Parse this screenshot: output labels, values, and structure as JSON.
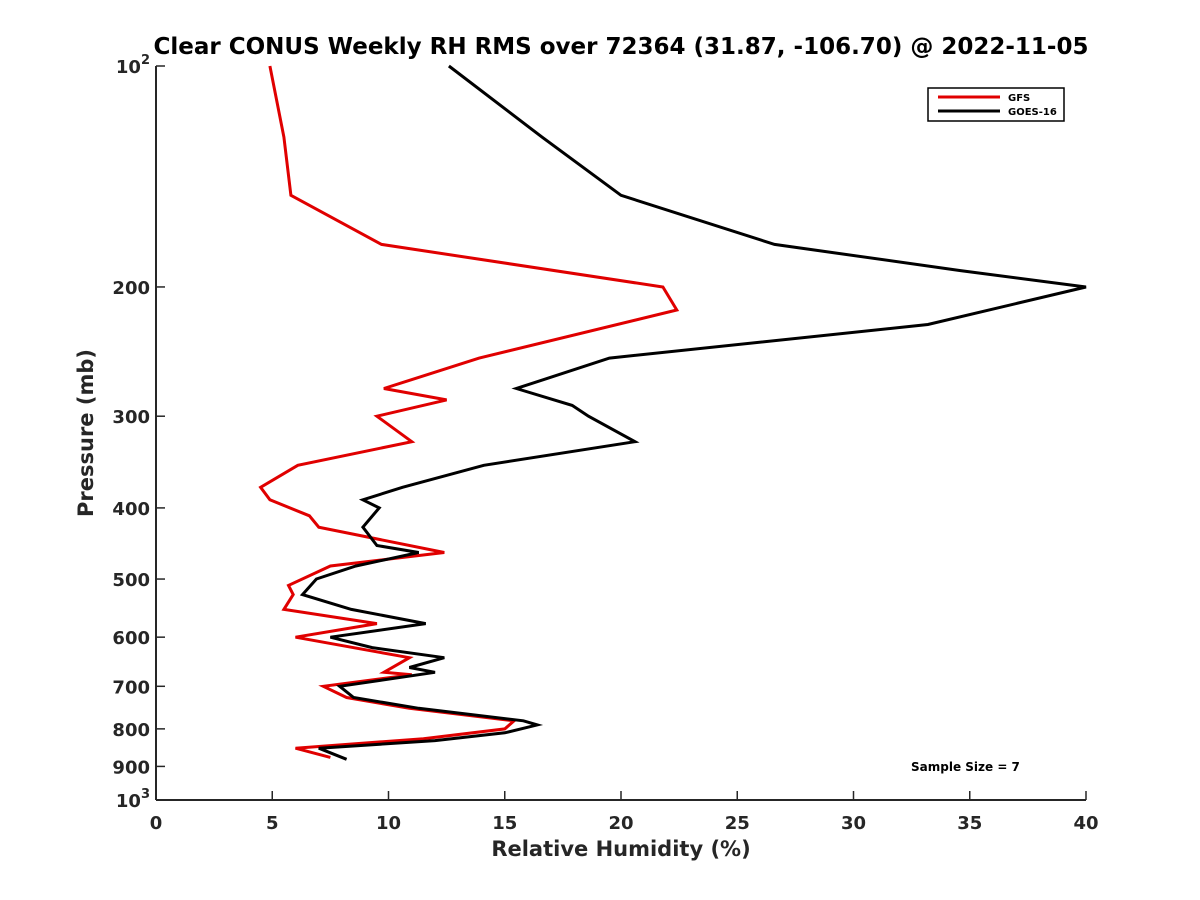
{
  "chart_data": {
    "type": "line",
    "title": "Clear CONUS Weekly RH RMS over 72364 (31.87, -106.70) @ 2022-11-05",
    "xlabel": "Relative Humidity (%)",
    "ylabel": "Pressure (mb)",
    "xlim": [
      0,
      40
    ],
    "ylim": [
      100,
      1000
    ],
    "y_scale": "log",
    "y_reversed": true,
    "x_ticks": [
      "0",
      "5",
      "10",
      "15",
      "20",
      "25",
      "30",
      "35",
      "40"
    ],
    "y_ticks": [
      {
        "value": 100,
        "base": "10",
        "exp": "2"
      },
      {
        "value": 200,
        "label": "200"
      },
      {
        "value": 300,
        "label": "300"
      },
      {
        "value": 400,
        "label": "400"
      },
      {
        "value": 500,
        "label": "500"
      },
      {
        "value": 600,
        "label": "600"
      },
      {
        "value": 700,
        "label": "700"
      },
      {
        "value": 800,
        "label": "800"
      },
      {
        "value": 900,
        "label": "900"
      },
      {
        "value": 1000,
        "base": "10",
        "exp": "3"
      }
    ],
    "legend_position": "top-right",
    "annotation": "Sample Size = 7",
    "series": [
      {
        "name": "GFS",
        "color": "#e00000",
        "points": [
          [
            4.9,
            100
          ],
          [
            5.5,
            125
          ],
          [
            5.8,
            150
          ],
          [
            9.7,
            175
          ],
          [
            21.8,
            200
          ],
          [
            22.4,
            215
          ],
          [
            13.9,
            250
          ],
          [
            9.8,
            275
          ],
          [
            12.5,
            285
          ],
          [
            9.5,
            300
          ],
          [
            11.0,
            325
          ],
          [
            6.1,
            350
          ],
          [
            4.5,
            375
          ],
          [
            4.9,
            390
          ],
          [
            6.6,
            410
          ],
          [
            7.0,
            425
          ],
          [
            12.4,
            460
          ],
          [
            7.5,
            480
          ],
          [
            5.7,
            510
          ],
          [
            5.9,
            525
          ],
          [
            5.5,
            550
          ],
          [
            9.5,
            575
          ],
          [
            6.0,
            600
          ],
          [
            10.9,
            640
          ],
          [
            9.8,
            670
          ],
          [
            11.0,
            675
          ],
          [
            7.2,
            700
          ],
          [
            8.2,
            725
          ],
          [
            10.9,
            750
          ],
          [
            15.4,
            780
          ],
          [
            15.0,
            800
          ],
          [
            11.5,
            825
          ],
          [
            6.0,
            850
          ],
          [
            7.5,
            875
          ]
        ]
      },
      {
        "name": "GOES-16",
        "color": "#000000",
        "points": [
          [
            12.6,
            100
          ],
          [
            16.6,
            125
          ],
          [
            20.0,
            150
          ],
          [
            26.6,
            175
          ],
          [
            34.6,
            190
          ],
          [
            40.0,
            200
          ],
          [
            33.2,
            225
          ],
          [
            19.5,
            250
          ],
          [
            15.5,
            275
          ],
          [
            17.9,
            290
          ],
          [
            18.6,
            300
          ],
          [
            20.6,
            325
          ],
          [
            14.1,
            350
          ],
          [
            10.6,
            375
          ],
          [
            8.9,
            390
          ],
          [
            9.6,
            400
          ],
          [
            8.9,
            425
          ],
          [
            9.5,
            450
          ],
          [
            11.3,
            460
          ],
          [
            8.6,
            480
          ],
          [
            6.9,
            500
          ],
          [
            6.3,
            525
          ],
          [
            8.4,
            550
          ],
          [
            11.6,
            575
          ],
          [
            7.5,
            600
          ],
          [
            9.3,
            620
          ],
          [
            12.4,
            640
          ],
          [
            10.9,
            660
          ],
          [
            12.0,
            670
          ],
          [
            7.9,
            700
          ],
          [
            8.5,
            725
          ],
          [
            11.3,
            750
          ],
          [
            15.8,
            780
          ],
          [
            16.4,
            790
          ],
          [
            15.0,
            810
          ],
          [
            12.0,
            830
          ],
          [
            7.0,
            850
          ],
          [
            8.2,
            880
          ]
        ]
      }
    ]
  }
}
